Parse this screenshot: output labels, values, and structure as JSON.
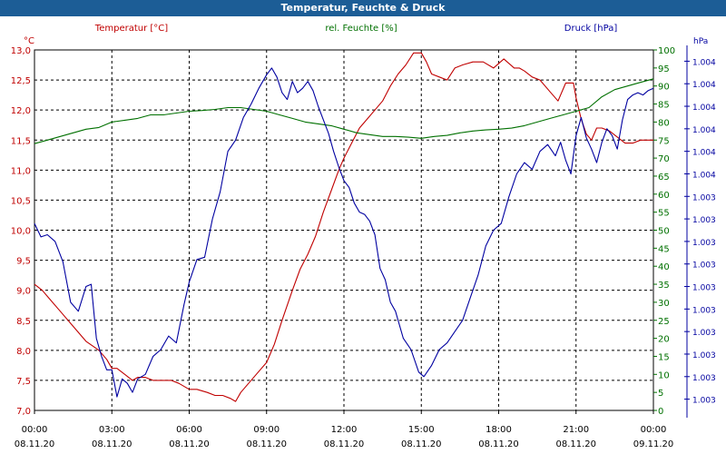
{
  "window": {
    "title": "Temperatur, Feuchte & Druck"
  },
  "colors": {
    "title_bg": "#1c5d96",
    "temperature": "#c00000",
    "humidity": "#007000",
    "pressure": "#0000a0",
    "grid": "#000000",
    "axis_text": "#000000"
  },
  "chart_data": {
    "type": "line",
    "title": "Temperatur, Feuchte & Druck",
    "x": {
      "unit": "hours since 08.11.20 00:00",
      "range": [
        0,
        24
      ],
      "ticks": [
        {
          "value": 0,
          "time": "00:00",
          "date": "08.11.20"
        },
        {
          "value": 3,
          "time": "03:00",
          "date": "08.11.20"
        },
        {
          "value": 6,
          "time": "06:00",
          "date": "08.11.20"
        },
        {
          "value": 9,
          "time": "09:00",
          "date": "08.11.20"
        },
        {
          "value": 12,
          "time": "12:00",
          "date": "08.11.20"
        },
        {
          "value": 15,
          "time": "15:00",
          "date": "08.11.20"
        },
        {
          "value": 18,
          "time": "18:00",
          "date": "08.11.20"
        },
        {
          "value": 21,
          "time": "21:00",
          "date": "08.11.20"
        },
        {
          "value": 24,
          "time": "00:00",
          "date": "09.11.20"
        }
      ]
    },
    "axes": {
      "temperature": {
        "label": "Temperatur [°C]",
        "unit": "°C",
        "range": [
          7.0,
          13.0
        ],
        "ticks": [
          "7,0",
          "7,5",
          "8,0",
          "8,5",
          "9,0",
          "9,5",
          "10,0",
          "10,5",
          "11,0",
          "11,5",
          "12,0",
          "12,5",
          "13,0"
        ]
      },
      "humidity": {
        "label": "rel. Feuchte [%]",
        "unit": "%",
        "range": [
          0,
          100
        ],
        "ticks": [
          "0",
          "5",
          "10",
          "15",
          "20",
          "25",
          "30",
          "35",
          "40",
          "45",
          "50",
          "55",
          "60",
          "65",
          "70",
          "75",
          "80",
          "85",
          "90",
          "95",
          "100"
        ]
      },
      "pressure": {
        "label": "Druck [hPa]",
        "unit": "hPa",
        "range": [
          0,
          16
        ],
        "ticks": [
          "1.003",
          "1.003",
          "1.003",
          "1.003",
          "1.003",
          "1.003",
          "1.003",
          "1.003",
          "1.003",
          "1.003",
          "1.004",
          "1.004",
          "1.004",
          "1.004",
          "1.004",
          "1.004"
        ]
      }
    },
    "series": [
      {
        "name": "Temperatur",
        "axis": "temperature",
        "x": [
          0,
          0.3,
          0.6,
          1,
          1.5,
          2,
          2.5,
          2.8,
          3,
          3.2,
          3.5,
          3.8,
          4,
          4.3,
          4.6,
          5,
          5.3,
          5.6,
          6,
          6.3,
          6.7,
          7,
          7.3,
          7.6,
          7.8,
          8,
          8.3,
          8.6,
          9,
          9.3,
          9.6,
          10,
          10.3,
          10.6,
          10.9,
          11.2,
          11.5,
          11.8,
          12,
          12.3,
          12.6,
          12.9,
          13.2,
          13.5,
          13.8,
          14.1,
          14.4,
          14.7,
          15,
          15.2,
          15.4,
          15.7,
          16,
          16.3,
          16.6,
          17,
          17.4,
          17.8,
          18.2,
          18.6,
          18.8,
          19,
          19.3,
          19.6,
          20,
          20.3,
          20.6,
          20.9,
          21,
          21.2,
          21.4,
          21.6,
          21.8,
          22,
          22.3,
          22.6,
          22.9,
          23.2,
          23.5,
          23.8,
          24
        ],
        "values": [
          9.1,
          9.0,
          8.85,
          8.65,
          8.4,
          8.15,
          8.0,
          7.85,
          7.7,
          7.7,
          7.6,
          7.5,
          7.55,
          7.55,
          7.5,
          7.5,
          7.5,
          7.45,
          7.35,
          7.35,
          7.3,
          7.25,
          7.25,
          7.2,
          7.15,
          7.3,
          7.45,
          7.6,
          7.8,
          8.1,
          8.5,
          9.0,
          9.35,
          9.6,
          9.9,
          10.3,
          10.65,
          11.0,
          11.2,
          11.45,
          11.7,
          11.85,
          12.0,
          12.15,
          12.4,
          12.6,
          12.75,
          12.95,
          12.95,
          12.8,
          12.6,
          12.55,
          12.5,
          12.7,
          12.75,
          12.8,
          12.8,
          12.7,
          12.85,
          12.7,
          12.7,
          12.65,
          12.55,
          12.5,
          12.3,
          12.15,
          12.45,
          12.45,
          12.2,
          11.85,
          11.6,
          11.5,
          11.7,
          11.7,
          11.65,
          11.55,
          11.45,
          11.45,
          11.5,
          11.5,
          11.5
        ]
      },
      {
        "name": "rel. Feuchte",
        "axis": "humidity",
        "x": [
          0,
          0.5,
          1,
          1.5,
          2,
          2.5,
          3,
          3.5,
          4,
          4.5,
          5,
          5.5,
          6,
          6.5,
          7,
          7.5,
          8,
          8.5,
          9,
          9.5,
          10,
          10.5,
          11,
          11.5,
          12,
          12.5,
          13,
          13.5,
          14,
          14.5,
          15,
          15.5,
          16,
          16.5,
          17,
          17.5,
          18,
          18.5,
          19,
          19.5,
          20,
          20.5,
          21,
          21.5,
          22,
          22.5,
          23,
          23.5,
          24
        ],
        "values": [
          74,
          75,
          76,
          77,
          78,
          78.5,
          80,
          80.5,
          81,
          82,
          82,
          82.5,
          83,
          83.2,
          83.5,
          84,
          84,
          83.5,
          83,
          82,
          81,
          80,
          79.5,
          79,
          78,
          77,
          76.5,
          76,
          76,
          75.8,
          75.5,
          76,
          76.3,
          77,
          77.5,
          77.8,
          78,
          78.3,
          79,
          80,
          81,
          82,
          83,
          84,
          87,
          89,
          90,
          91,
          92
        ]
      },
      {
        "name": "Druck",
        "axis": "pressure",
        "x": [
          0,
          0.25,
          0.5,
          0.8,
          1.1,
          1.4,
          1.7,
          2,
          2.2,
          2.4,
          2.6,
          2.8,
          3,
          3.2,
          3.4,
          3.6,
          3.8,
          4,
          4.3,
          4.6,
          4.9,
          5.2,
          5.5,
          5.8,
          6,
          6.3,
          6.6,
          6.9,
          7.2,
          7.5,
          7.8,
          8.1,
          8.4,
          8.7,
          9,
          9.2,
          9.4,
          9.6,
          9.8,
          10,
          10.2,
          10.4,
          10.6,
          10.8,
          11,
          11.2,
          11.4,
          11.6,
          11.8,
          12,
          12.2,
          12.4,
          12.6,
          12.8,
          13,
          13.2,
          13.4,
          13.6,
          13.8,
          14,
          14.3,
          14.6,
          14.9,
          15.1,
          15.4,
          15.7,
          16,
          16.3,
          16.6,
          16.9,
          17.2,
          17.5,
          17.8,
          18.1,
          18.4,
          18.7,
          19,
          19.3,
          19.6,
          19.9,
          20.2,
          20.4,
          20.6,
          20.8,
          21,
          21.2,
          21.4,
          21.6,
          21.8,
          22,
          22.2,
          22.4,
          22.6,
          22.8,
          23,
          23.2,
          23.4,
          23.6,
          23.8,
          24
        ],
        "values": [
          8.3,
          7.7,
          7.8,
          7.5,
          6.6,
          4.8,
          4.4,
          5.5,
          5.6,
          3.2,
          2.4,
          1.8,
          1.8,
          0.6,
          1.4,
          1.2,
          0.8,
          1.4,
          1.6,
          2.4,
          2.7,
          3.3,
          3.0,
          4.7,
          5.7,
          6.7,
          6.8,
          8.5,
          9.7,
          11.5,
          12.0,
          13.0,
          13.6,
          14.3,
          14.9,
          15.2,
          14.8,
          14.1,
          13.8,
          14.6,
          14.1,
          14.3,
          14.6,
          14.2,
          13.5,
          12.9,
          12.3,
          11.5,
          10.8,
          10.2,
          9.9,
          9.2,
          8.8,
          8.7,
          8.4,
          7.8,
          6.3,
          5.8,
          4.8,
          4.4,
          3.2,
          2.7,
          1.7,
          1.5,
          2.0,
          2.7,
          3.0,
          3.5,
          4.0,
          5.0,
          6.0,
          7.3,
          8.0,
          8.3,
          9.5,
          10.5,
          11.0,
          10.7,
          11.5,
          11.8,
          11.3,
          11.9,
          11.1,
          10.5,
          12.2,
          13.0,
          12.1,
          11.6,
          11.0,
          11.9,
          12.5,
          12.2,
          11.6,
          12.9,
          13.8,
          14.0,
          14.1,
          14.0,
          14.2,
          14.3
        ]
      }
    ]
  }
}
